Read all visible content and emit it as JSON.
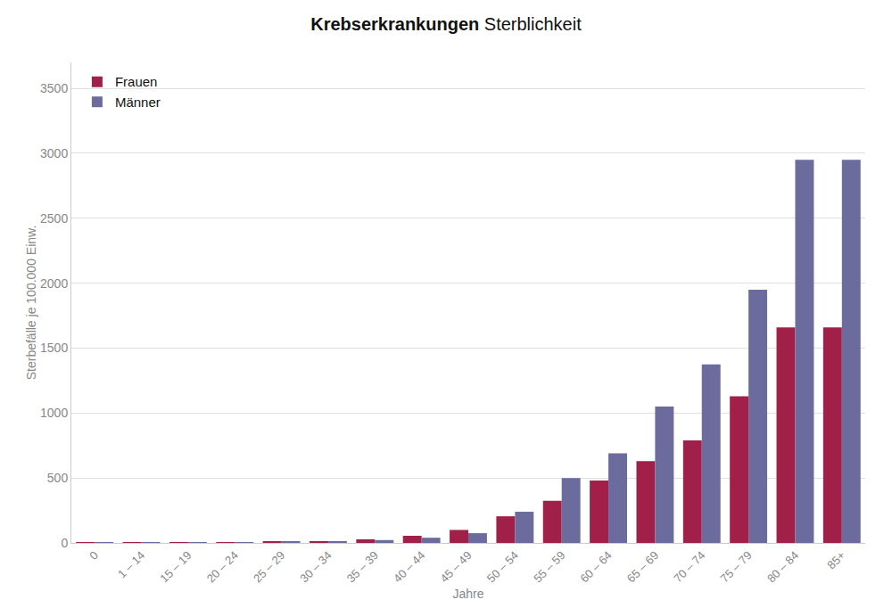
{
  "chart_data": {
    "type": "bar",
    "title": "Krebserkrankungen Sterblichkeit",
    "xlabel": "Jahre",
    "ylabel": "Sterbefälle je 100.000 Einw.",
    "categories": [
      "0",
      "1 – 14",
      "15 – 19",
      "20 – 24",
      "25 – 29",
      "30 – 34",
      "35 – 39",
      "40 – 44",
      "45 – 49",
      "50 – 54",
      "55 – 59",
      "60 – 64",
      "65 – 69",
      "70 – 74",
      "75 – 79",
      "80 – 84",
      "85+"
    ],
    "series": [
      {
        "name": "Frauen",
        "color": "#a0204a",
        "values": [
          2,
          2,
          3,
          4,
          8,
          14,
          28,
          55,
          100,
          205,
          325,
          480,
          630,
          790,
          1130,
          1660,
          1660
        ]
      },
      {
        "name": "Männer",
        "color": "#6b6b9e",
        "values": [
          3,
          3,
          4,
          5,
          7,
          12,
          22,
          40,
          75,
          240,
          500,
          690,
          1050,
          1375,
          1950,
          2950,
          2950
        ]
      }
    ],
    "ylim": [
      0,
      3700
    ],
    "yticks": [
      0,
      500,
      1000,
      1500,
      2000,
      2500,
      3000,
      3500
    ],
    "grid": true,
    "legend": "upper left"
  }
}
